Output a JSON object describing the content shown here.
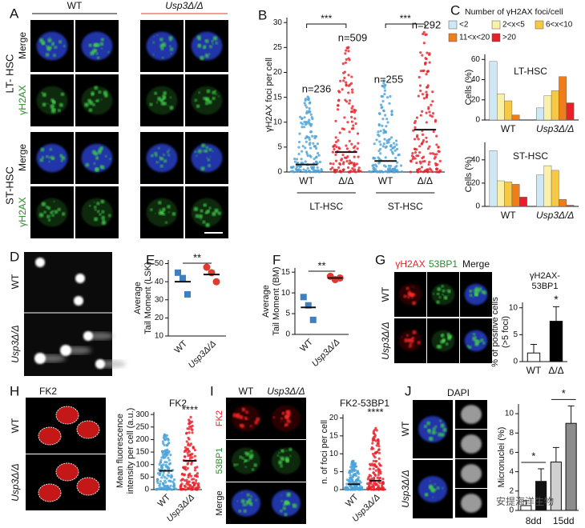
{
  "letters": [
    "A",
    "B",
    "C",
    "D",
    "E",
    "F",
    "G",
    "H",
    "I",
    "J"
  ],
  "panel_A": {
    "headers": [
      "WT",
      "Usp3Δ/Δ"
    ],
    "channels": [
      "Merge",
      "γH2AX",
      "Merge",
      "γH2AX"
    ],
    "groups": [
      "LT- HSC",
      "ST-HSC"
    ]
  },
  "panel_D": {
    "rows": [
      "WT",
      "Usp3Δ/Δ"
    ]
  },
  "panel_G": {
    "headers": [
      "γH2AX",
      "53BP1",
      "Merge"
    ],
    "rows": [
      "WT",
      "Usp3Δ/Δ"
    ]
  },
  "panel_H": {
    "header": "FK2",
    "rows": [
      "WT",
      "Usp3Δ/Δ"
    ]
  },
  "panel_I": {
    "headers": [
      "WT",
      "Usp3Δ/Δ"
    ],
    "rows": [
      "FK2",
      "53BP1",
      "Merge"
    ]
  },
  "panel_J": {
    "header": "DAPI",
    "rows": [
      "WT",
      "Usp3Δ/Δ"
    ],
    "watermark": "安提海洋生物"
  },
  "chart_data": [
    {
      "type": "strip",
      "ylabel": [
        "γH2AX foci per cell"
      ],
      "categories": [
        "WT",
        "Δ/Δ",
        "WT",
        "Δ/Δ"
      ],
      "groups": [
        "LT-HSC",
        "ST-HSC"
      ],
      "values": [
        1.5,
        4,
        2.2,
        8.5
      ],
      "colors": [
        "#4aa3d8",
        "#e8202a",
        "#4aa3d8",
        "#e8202a"
      ],
      "n_labels": [
        "n=236",
        "n=509",
        "n=255",
        "n=292"
      ],
      "significance": [
        "***",
        "***"
      ],
      "ylim": [
        0,
        31
      ],
      "yticks": [
        0,
        5,
        10,
        15,
        20,
        25,
        30
      ]
    },
    {
      "type": "bar",
      "legend_title": "Number of γH2AX foci/cell",
      "title": "LT-HSC",
      "ylabel": [
        "Cells (%)"
      ],
      "categories": [
        "WT",
        "Usp3Δ/Δ"
      ],
      "series": [
        {
          "name": "<2",
          "color": "#cfe8f5",
          "values": [
            58,
            12
          ]
        },
        {
          "name": "2<x<5",
          "color": "#fbf0a8",
          "values": [
            26,
            24
          ]
        },
        {
          "name": "6<x<10",
          "color": "#f7c843",
          "values": [
            19,
            29
          ]
        },
        {
          "name": "11<x<20",
          "color": "#ef7d1a",
          "values": [
            5,
            43
          ]
        },
        {
          "name": ">20",
          "color": "#e8202a",
          "values": [
            0,
            17
          ]
        }
      ],
      "ylim": [
        0,
        65
      ],
      "yticks": [
        0,
        20,
        40,
        60
      ]
    },
    {
      "type": "bar",
      "title": "ST-HSC",
      "ylabel": [
        "Cells (%)"
      ],
      "categories": [
        "WT",
        "Usp3Δ/Δ"
      ],
      "series": [
        {
          "name": "<2",
          "color": "#cfe8f5",
          "values": [
            48,
            27
          ]
        },
        {
          "name": "2<x<5",
          "color": "#fbf0a8",
          "values": [
            22,
            35
          ]
        },
        {
          "name": "6<x<10",
          "color": "#f7c843",
          "values": [
            21,
            31
          ]
        },
        {
          "name": "11<x<20",
          "color": "#ef7d1a",
          "values": [
            19,
            6
          ]
        },
        {
          "name": ">20",
          "color": "#e8202a",
          "values": [
            8,
            1
          ]
        }
      ],
      "ylim": [
        0,
        55
      ],
      "yticks": [
        0,
        20,
        40
      ]
    },
    {
      "type": "strip",
      "ylabel": [
        "Average",
        "Tail Moment (LSK)"
      ],
      "categories": [
        "WT",
        "Usp3Δ/Δ"
      ],
      "points": [
        [
          45,
          42,
          33
        ],
        [
          48,
          45,
          40
        ]
      ],
      "values": [
        40,
        44
      ],
      "colors": [
        "#3d7fc1",
        "#e03b2e"
      ],
      "significance": "**",
      "ylim": [
        10,
        52
      ],
      "yticks": [
        10,
        20,
        30,
        40,
        50
      ]
    },
    {
      "type": "strip",
      "ylabel": [
        "Average",
        "Tail Moment (BM)"
      ],
      "categories": [
        "WT",
        "Usp3Δ/Δ"
      ],
      "points": [
        [
          9,
          7,
          3.5
        ],
        [
          14,
          13.2,
          13.6
        ]
      ],
      "values": [
        6.5,
        13.6
      ],
      "colors": [
        "#3d7fc1",
        "#e03b2e"
      ],
      "significance": "**",
      "ylim": [
        0,
        16
      ],
      "yticks": [
        0,
        5,
        10,
        15
      ]
    },
    {
      "type": "bar",
      "title": [
        "γH2AX-",
        "53BP1"
      ],
      "ylabel": [
        "% of positive cells",
        "(>5 foci)"
      ],
      "categories": [
        "WT",
        "Δ/Δ"
      ],
      "values": [
        1.6,
        7.5
      ],
      "errors": [
        1.6,
        2.7
      ],
      "colors": [
        "#ffffff",
        "#000000"
      ],
      "significance": [
        "*"
      ],
      "ylim": [
        0,
        11
      ],
      "yticks": [
        0,
        5,
        10
      ]
    },
    {
      "type": "strip",
      "title": "FK2",
      "ylabel": [
        "Mean fluorescence",
        "intensity per cell (a.u.)"
      ],
      "categories": [
        "WT",
        "Usp3Δ/Δ"
      ],
      "values": [
        75,
        115
      ],
      "colors": [
        "#4aa3d8",
        "#e8202a"
      ],
      "significance": "****",
      "ylim": [
        0,
        310
      ],
      "yticks": [
        0,
        50,
        100,
        150,
        200,
        250,
        300
      ]
    },
    {
      "type": "strip",
      "title": "FK2-53BP1",
      "ylabel": [
        "n. of foci per cell"
      ],
      "categories": [
        "WT",
        "Usp3Δ/Δ"
      ],
      "values": [
        1.5,
        2.5
      ],
      "colors": [
        "#4aa3d8",
        "#e8202a"
      ],
      "significance": "****",
      "ylim": [
        0,
        21
      ],
      "yticks": [
        0,
        5,
        10,
        15,
        20
      ]
    },
    {
      "type": "bar",
      "ylabel": [
        "Micronuclei (%)"
      ],
      "groups": [
        "8dd",
        "15dd"
      ],
      "values": [
        0.5,
        3,
        5,
        9
      ],
      "errors": [
        0.5,
        1.3,
        1.5,
        1.8
      ],
      "colors": [
        "#ffffff",
        "#111111",
        "#d0d0d0",
        "#8c8c8c"
      ],
      "significance": [
        "*",
        "*"
      ],
      "ylim": [
        0,
        11
      ],
      "yticks": [
        0,
        2,
        4,
        6,
        8,
        10
      ]
    }
  ]
}
